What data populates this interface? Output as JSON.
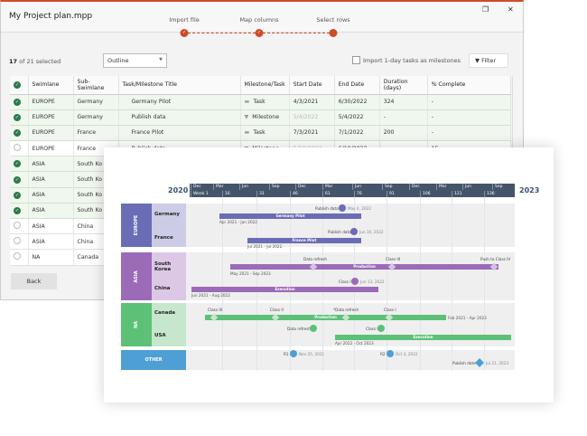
{
  "window": {
    "title": "My Project plan.mpp",
    "maximize_icon": "square-icon",
    "close_icon": "close-icon",
    "steps": [
      {
        "label": "Import file",
        "state": "done"
      },
      {
        "label": "Map columns",
        "state": "done"
      },
      {
        "label": "Select rows",
        "state": "current"
      }
    ]
  },
  "toolbar": {
    "selected_count": "17",
    "selected_suffix": "of 21 selected",
    "view_select": "Outline",
    "milestone_checkbox_label": "Import 1-day tasks as milestones",
    "milestone_checkbox_checked": false,
    "filter_label": "Filter"
  },
  "table": {
    "columns": [
      "Swimlane",
      "Sub-Swimlane",
      "Task/Milestone Title",
      "Milestone/Task",
      "Start Date",
      "End Date",
      "Duration (days)",
      "% Complete"
    ],
    "rows": [
      {
        "checked": true,
        "swimlane": "EUROPE",
        "sub": "Germany",
        "title": "Germany Pilot",
        "type": "Task",
        "start": "4/3/2021",
        "end": "6/30/2022",
        "duration": "324",
        "complete": "-"
      },
      {
        "checked": true,
        "swimlane": "EUROPE",
        "sub": "Germany",
        "title": "Publish data",
        "type": "Milestone",
        "start": "5/4/2022",
        "end": "5/4/2022",
        "duration": "-",
        "complete": "-"
      },
      {
        "checked": true,
        "swimlane": "EUROPE",
        "sub": "France",
        "title": "France Pilot",
        "type": "Task",
        "start": "7/3/2021",
        "end": "7/1/2022",
        "duration": "200",
        "complete": "-"
      },
      {
        "checked": false,
        "swimlane": "EUROPE",
        "sub": "France",
        "title": "Publish data",
        "type": "Milestone",
        "start": "6/10/2022",
        "end": "6/10/2022",
        "duration": "-",
        "complete": "15"
      },
      {
        "checked": true,
        "swimlane": "ASIA",
        "sub": "South Ko"
      },
      {
        "checked": true,
        "swimlane": "ASIA",
        "sub": "South Ko"
      },
      {
        "checked": true,
        "swimlane": "ASIA",
        "sub": "South Ko"
      },
      {
        "checked": true,
        "swimlane": "ASIA",
        "sub": "South Ko"
      },
      {
        "checked": false,
        "swimlane": "ASIA",
        "sub": "China"
      },
      {
        "checked": false,
        "swimlane": "ASIA",
        "sub": "China"
      },
      {
        "checked": false,
        "swimlane": "NA",
        "sub": "Canada"
      }
    ]
  },
  "back_label": "Back",
  "timeline": {
    "year_start": "2020",
    "year_end": "2023",
    "months": [
      "Dec",
      "Mar",
      "Jun",
      "Sep",
      "Dec",
      "Mar",
      "Jun",
      "Sep",
      "Dec",
      "Mar",
      "Jun",
      "Sep"
    ],
    "weeks": [
      "Week 1",
      "16",
      "31",
      "46",
      "61",
      "76",
      "91",
      "106",
      "121",
      "136"
    ],
    "colors": {
      "europe": "#6a6db5",
      "asia": "#9b6bb8",
      "na": "#5cc177",
      "other": "#4d9fd4"
    },
    "groups": {
      "europe": "EUROPE",
      "asia": "ASIA",
      "na": "NA",
      "other": "OTHER"
    },
    "subs": {
      "germany": "Germany",
      "france": "France",
      "korea": "South Korea",
      "china": "China",
      "canada": "Canada",
      "usa": "USA"
    },
    "items": {
      "germany_ms": {
        "label": "Publish data",
        "date": "May 4, 2022"
      },
      "germany_bar": {
        "label": "Germany Pilot",
        "range": "Apr 2021 - Jun 2022"
      },
      "france_ms": {
        "label": "Publish data",
        "date": "Jun 10, 2022"
      },
      "france_bar": {
        "label": "France Pilot",
        "range": "Jul 2021 - Jul 2022"
      },
      "korea_bar": {
        "label": "Production",
        "range": "May 2021 - Sep 2023",
        "milestones": [
          "Data refresh",
          "Class III",
          "Push to Class IV"
        ]
      },
      "china_ms": {
        "label": "Class I",
        "date": "Jun 13, 2022"
      },
      "china_bar": {
        "label": "Execution",
        "range": "Jun 2021 - Aug 2022"
      },
      "canada_bar": {
        "label": "Production",
        "range": "Feb 2021 - Apr 2023",
        "milestones": [
          "Class III",
          "Class II",
          "*Data refresh",
          "Class I"
        ]
      },
      "usa_ms1": {
        "label": "Data refresh"
      },
      "usa_ms2": {
        "label": "Class I"
      },
      "usa_bar": {
        "label": "Execution",
        "range": "Apr 2022 - Oct 2023"
      },
      "r1": {
        "label": "R1",
        "date": "Nov 25, 2021"
      },
      "r2": {
        "label": "R2",
        "date": "Oct 3, 2022"
      },
      "publish": {
        "label": "Publish date",
        "date": "Jul 21, 2023"
      }
    }
  }
}
